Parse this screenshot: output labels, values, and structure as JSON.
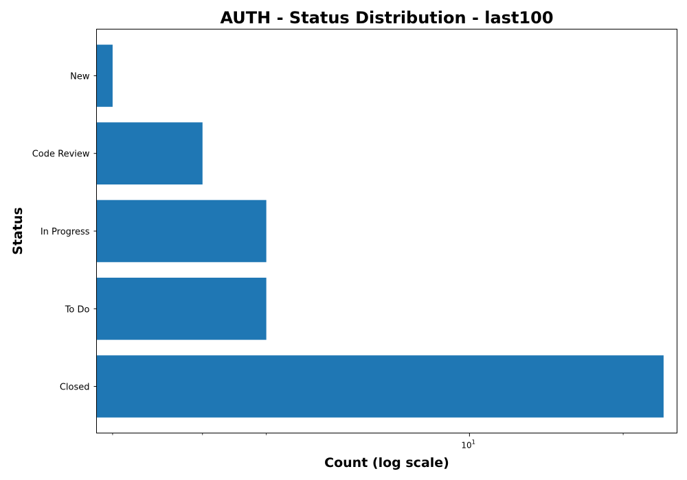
{
  "chart_data": {
    "type": "bar",
    "orientation": "horizontal",
    "title": "AUTH - Status Distribution - last100",
    "xlabel": "Count (log scale)",
    "ylabel": "Status",
    "xscale": "log",
    "xlim": [
      1.86,
      25.5
    ],
    "x_major_tick": {
      "value": 10,
      "base": "10",
      "exponent": "1"
    },
    "x_minor_ticks": [
      2,
      3,
      4,
      20
    ],
    "categories": [
      "Closed",
      "To Do",
      "In Progress",
      "Code Review",
      "New"
    ],
    "values": [
      24,
      4,
      4,
      3,
      2
    ],
    "bar_color": "#1f77b4",
    "grid": false,
    "legend": "none"
  }
}
